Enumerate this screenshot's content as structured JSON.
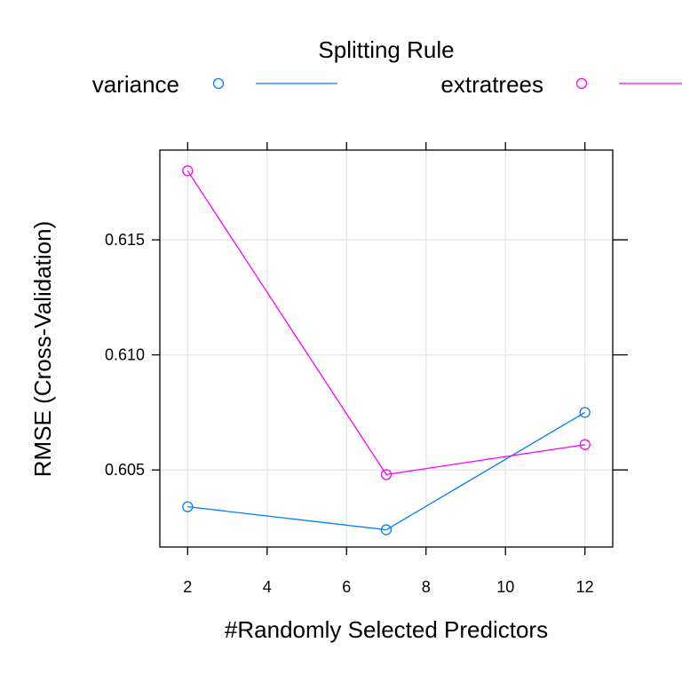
{
  "chart_data": {
    "type": "line",
    "title": "",
    "xlabel": "#Randomly Selected Predictors",
    "ylabel": "RMSE (Cross-Validation)",
    "xlim": [
      1.3,
      12.7
    ],
    "ylim": [
      0.60165,
      0.6189
    ],
    "x_ticks": [
      2,
      4,
      6,
      8,
      10,
      12
    ],
    "x_tick_labels": [
      "2",
      "4",
      "6",
      "8",
      "10",
      "12"
    ],
    "y_ticks": [
      0.605,
      0.61,
      0.615
    ],
    "y_tick_labels": [
      "0.605",
      "0.610",
      "0.615"
    ],
    "grid": true,
    "legend": {
      "title": "Splitting Rule",
      "placement": "top",
      "items": [
        "variance",
        "extratrees"
      ]
    },
    "x": [
      2,
      7,
      12
    ],
    "series": [
      {
        "name": "variance",
        "color": "#0080ff",
        "values": [
          0.6034,
          0.6024,
          0.6075
        ]
      },
      {
        "name": "extratrees",
        "color": "#ff00ff",
        "values": [
          0.618,
          0.6048,
          0.6061
        ]
      }
    ]
  }
}
